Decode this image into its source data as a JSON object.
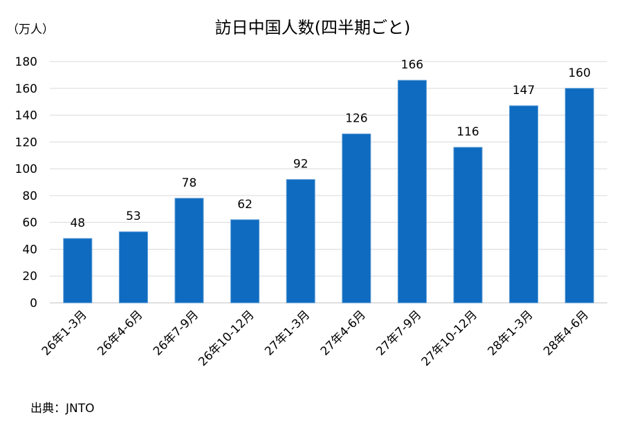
{
  "chart_data": {
    "type": "bar",
    "title": "訪日中国人数(四半期ごと)",
    "unit_label": "（万人）",
    "categories": [
      "26年1-3月",
      "26年4-6月",
      "26年7-9月",
      "26年10-12月",
      "27年1-3月",
      "27年4-6月",
      "27年7-9月",
      "27年10-12月",
      "28年1-3月",
      "28年4-6月"
    ],
    "values": [
      48,
      53,
      78,
      62,
      92,
      126,
      166,
      116,
      147,
      160
    ],
    "ylim": [
      0,
      180
    ],
    "yticks": [
      0,
      20,
      40,
      60,
      80,
      100,
      120,
      140,
      160,
      180
    ],
    "grid": true,
    "bar_color": "#0E6BBF",
    "data_labels": true
  },
  "source": "出典：JNTO"
}
